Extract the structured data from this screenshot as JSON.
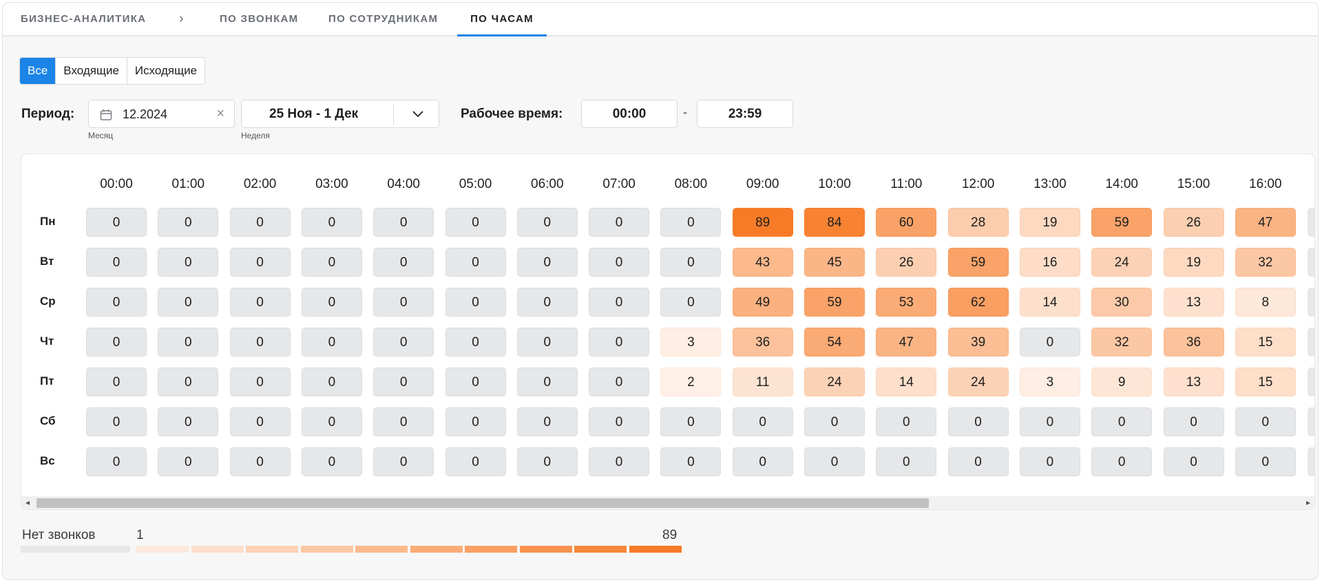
{
  "nav": {
    "breadcrumb": "БИЗНЕС-АНАЛИТИКА",
    "tabs": [
      "ПО ЗВОНКАМ",
      "ПО СОТРУДНИКАМ",
      "ПО ЧАСАМ"
    ],
    "active_tab": "ПО ЧАСАМ"
  },
  "filters": {
    "call_types": [
      "Все",
      "Входящие",
      "Исходящие"
    ],
    "active_call_type": "Все",
    "period_label": "Период:",
    "month_value": "12.2024",
    "month_caption": "Месяц",
    "week_value": "25 Ноя - 1 Дек",
    "week_caption": "Неделя",
    "work_time_label": "Рабочее время:",
    "work_time_from": "00:00",
    "work_time_separator": "-",
    "work_time_to": "23:59"
  },
  "chart_data": {
    "type": "heatmap",
    "x_labels": [
      "00:00",
      "01:00",
      "02:00",
      "03:00",
      "04:00",
      "05:00",
      "06:00",
      "07:00",
      "08:00",
      "09:00",
      "10:00",
      "11:00",
      "12:00",
      "13:00",
      "14:00",
      "15:00",
      "16:00"
    ],
    "y_labels": [
      "Пн",
      "Вт",
      "Ср",
      "Чт",
      "Пт",
      "Сб",
      "Вс"
    ],
    "values": [
      [
        0,
        0,
        0,
        0,
        0,
        0,
        0,
        0,
        0,
        89,
        84,
        60,
        28,
        19,
        59,
        26,
        47
      ],
      [
        0,
        0,
        0,
        0,
        0,
        0,
        0,
        0,
        0,
        43,
        45,
        26,
        59,
        16,
        24,
        19,
        32
      ],
      [
        0,
        0,
        0,
        0,
        0,
        0,
        0,
        0,
        0,
        49,
        59,
        53,
        62,
        14,
        30,
        13,
        8
      ],
      [
        0,
        0,
        0,
        0,
        0,
        0,
        0,
        0,
        3,
        36,
        54,
        47,
        39,
        0,
        32,
        36,
        15
      ],
      [
        0,
        0,
        0,
        0,
        0,
        0,
        0,
        0,
        2,
        11,
        24,
        14,
        24,
        3,
        9,
        13,
        15
      ],
      [
        0,
        0,
        0,
        0,
        0,
        0,
        0,
        0,
        0,
        0,
        0,
        0,
        0,
        0,
        0,
        0,
        0
      ],
      [
        0,
        0,
        0,
        0,
        0,
        0,
        0,
        0,
        0,
        0,
        0,
        0,
        0,
        0,
        0,
        0,
        0
      ]
    ],
    "min": 1,
    "max": 89
  },
  "legend": {
    "no_calls_label": "Нет звонков",
    "min_label": "1",
    "max_label": "89",
    "zero_color": "#e6e7e9",
    "scale_colors": [
      "#fde9dc",
      "#fddfcb",
      "#fcd2b6",
      "#fcc6a2",
      "#fbb98c",
      "#fbac77",
      "#faa063",
      "#f9934f",
      "#f8873b",
      "#f77b27"
    ]
  },
  "colors": {
    "accent": "#1b84e6",
    "heat_low": "#fef1e8",
    "heat_high": "#f77b27"
  }
}
